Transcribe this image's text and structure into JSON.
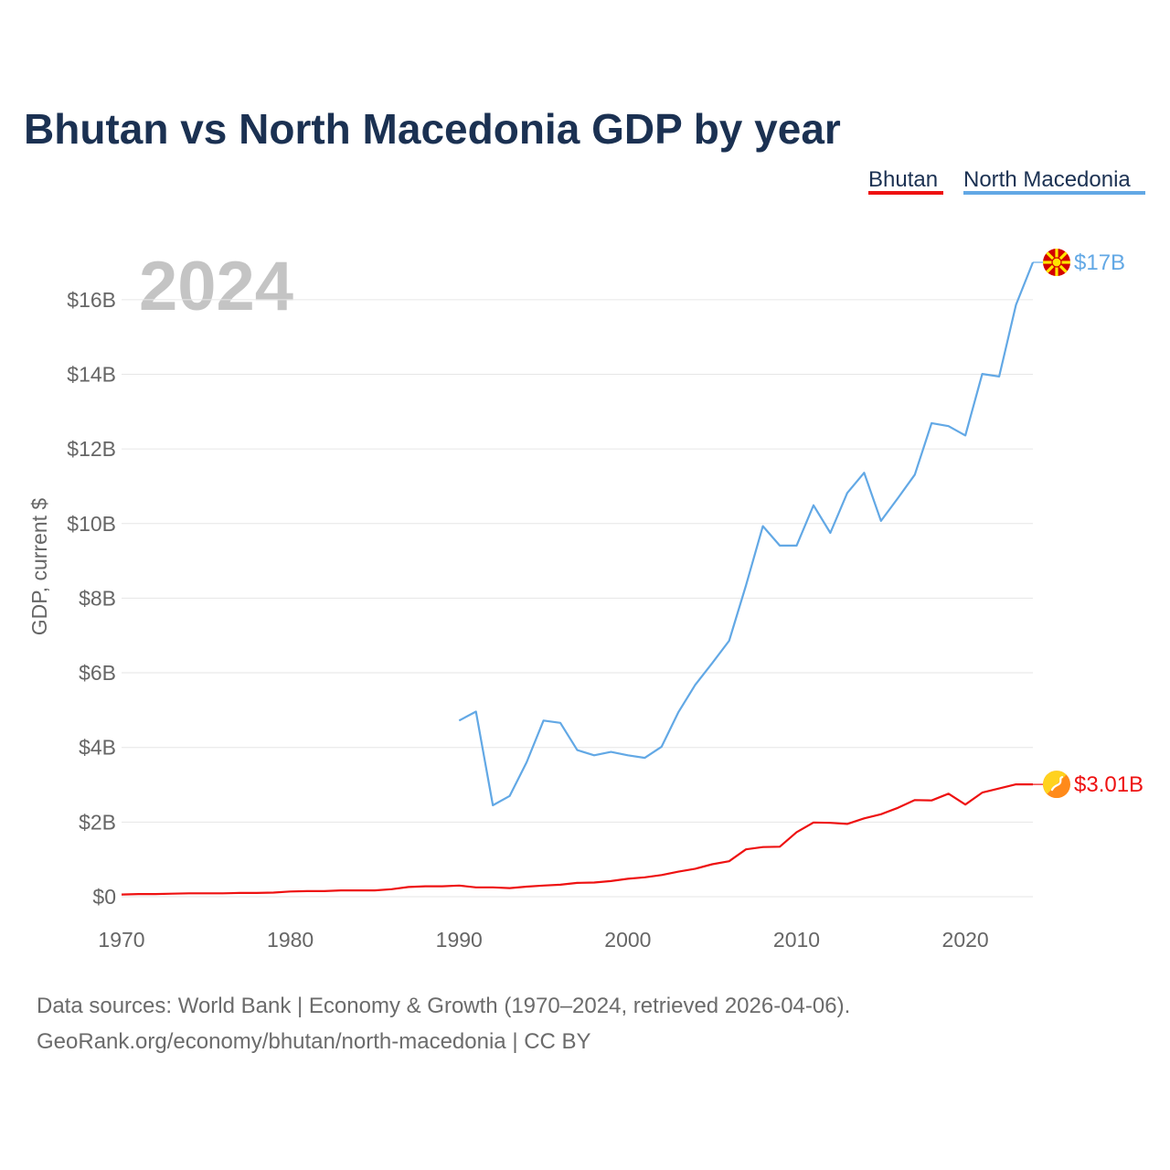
{
  "chart_data": {
    "type": "line",
    "title": "Bhutan vs North Macedonia GDP by year",
    "watermark_year": "2024",
    "ylabel": "GDP, current $",
    "xlabel": "",
    "xlim": [
      1970,
      2024
    ],
    "ylim": [
      -0.5,
      17.5
    ],
    "x_ticks": [
      1970,
      1980,
      1990,
      2000,
      2010,
      2020
    ],
    "x_tick_labels": [
      "1970",
      "1980",
      "1990",
      "2000",
      "2010",
      "2020"
    ],
    "y_ticks": [
      0,
      2,
      4,
      6,
      8,
      10,
      12,
      14,
      16
    ],
    "y_tick_labels": [
      "$0",
      "$2B",
      "$4B",
      "$6B",
      "$8B",
      "$10B",
      "$12B",
      "$14B",
      "$16B"
    ],
    "unit": "billions of current US$",
    "legend": [
      "Bhutan",
      "North Macedonia"
    ],
    "legend_position": "top-right",
    "series": [
      {
        "name": "Bhutan",
        "color": "#ee1111",
        "end_label": "$3.01B",
        "x": [
          1970,
          1971,
          1972,
          1973,
          1974,
          1975,
          1976,
          1977,
          1978,
          1979,
          1980,
          1981,
          1982,
          1983,
          1984,
          1985,
          1986,
          1987,
          1988,
          1989,
          1990,
          1991,
          1992,
          1993,
          1994,
          1995,
          1996,
          1997,
          1998,
          1999,
          2000,
          2001,
          2002,
          2003,
          2004,
          2005,
          2006,
          2007,
          2008,
          2009,
          2010,
          2011,
          2012,
          2013,
          2014,
          2015,
          2016,
          2017,
          2018,
          2019,
          2020,
          2021,
          2022,
          2023,
          2024
        ],
        "values": [
          0.06,
          0.07,
          0.07,
          0.08,
          0.09,
          0.09,
          0.09,
          0.1,
          0.1,
          0.11,
          0.14,
          0.15,
          0.15,
          0.17,
          0.17,
          0.17,
          0.2,
          0.26,
          0.28,
          0.28,
          0.3,
          0.25,
          0.25,
          0.23,
          0.27,
          0.3,
          0.32,
          0.37,
          0.38,
          0.42,
          0.48,
          0.52,
          0.58,
          0.67,
          0.75,
          0.87,
          0.95,
          1.27,
          1.33,
          1.34,
          1.73,
          1.99,
          1.98,
          1.95,
          2.1,
          2.21,
          2.38,
          2.59,
          2.58,
          2.76,
          2.47,
          2.79,
          2.9,
          3.01,
          3.01
        ]
      },
      {
        "name": "North Macedonia",
        "color": "#62a8e5",
        "end_label": "$17B",
        "x": [
          1990,
          1991,
          1992,
          1993,
          1994,
          1995,
          1996,
          1997,
          1998,
          1999,
          2000,
          2001,
          2002,
          2003,
          2004,
          2005,
          2006,
          2007,
          2008,
          2009,
          2010,
          2011,
          2012,
          2013,
          2014,
          2015,
          2016,
          2017,
          2018,
          2019,
          2020,
          2021,
          2022,
          2023,
          2024
        ],
        "values": [
          4.72,
          4.96,
          2.45,
          2.7,
          3.6,
          4.72,
          4.66,
          3.93,
          3.79,
          3.88,
          3.79,
          3.72,
          4.02,
          4.95,
          5.68,
          6.26,
          6.86,
          8.34,
          9.93,
          9.41,
          9.41,
          10.49,
          9.75,
          10.82,
          11.36,
          10.07,
          10.68,
          11.31,
          12.69,
          12.61,
          12.36,
          14.01,
          13.94,
          15.86,
          17.0
        ]
      }
    ]
  },
  "footer": {
    "source_line": "Data sources: World Bank | Economy & Growth (1970–2024, retrieved 2026-04-06).",
    "credit_line": "GeoRank.org/economy/bhutan/north-macedonia | CC BY"
  },
  "flags": {
    "north_macedonia": "north-macedonia-flag-icon",
    "bhutan": "bhutan-flag-icon"
  }
}
